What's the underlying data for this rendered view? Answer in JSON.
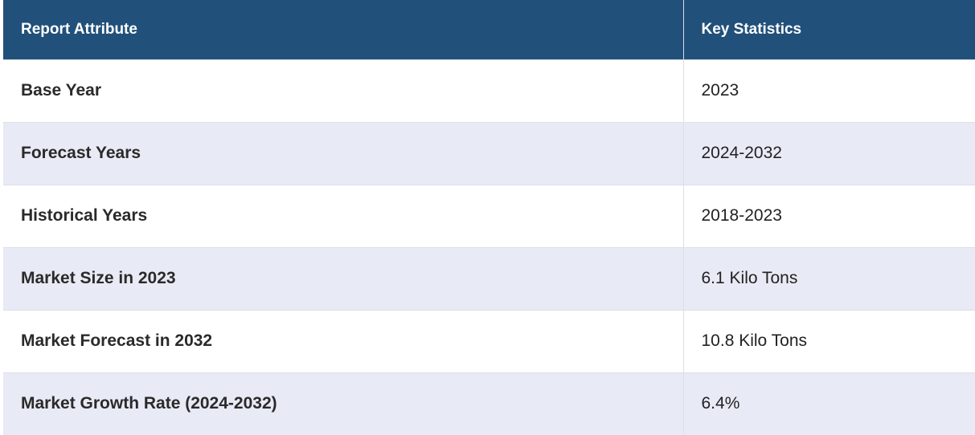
{
  "table": {
    "header": [
      "Report Attribute",
      "Key Statistics"
    ],
    "rows": [
      [
        "Base Year",
        "2023"
      ],
      [
        "Forecast Years",
        "2024-2032"
      ],
      [
        "Historical Years",
        "2018-2023"
      ],
      [
        "Market Size in 2023",
        "6.1 Kilo Tons"
      ],
      [
        "Market Forecast in 2032",
        "10.8 Kilo Tons"
      ],
      [
        "Market Growth Rate (2024-2032)",
        "6.4%"
      ]
    ]
  }
}
